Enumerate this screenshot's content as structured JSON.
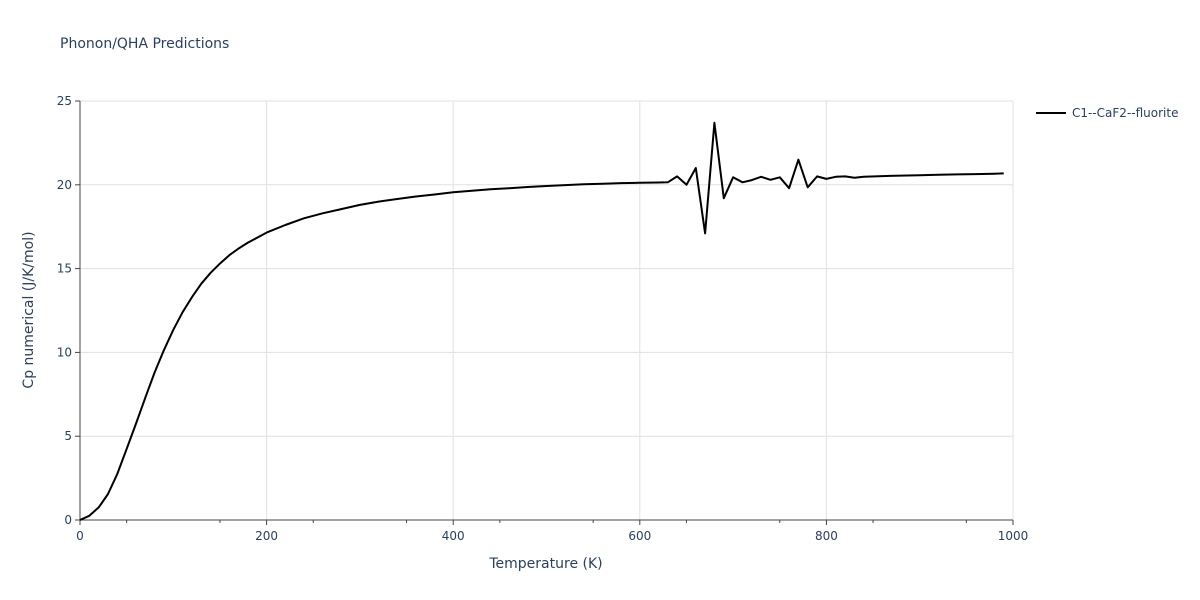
{
  "chart_data": {
    "type": "line",
    "title": "Phonon/QHA Predictions",
    "xlabel": "Temperature (K)",
    "ylabel": "Cp numerical (J/K/mol)",
    "xlim": [
      0,
      1000
    ],
    "ylim": [
      0,
      25
    ],
    "x_ticks": [
      0,
      200,
      400,
      600,
      800,
      1000
    ],
    "y_ticks": [
      0,
      5,
      10,
      15,
      20,
      25
    ],
    "grid": true,
    "legend_position": "top-right",
    "series": [
      {
        "name": "C1--CaF2--fluorite",
        "color": "#000000",
        "x": [
          0,
          10,
          20,
          30,
          40,
          50,
          60,
          70,
          80,
          90,
          100,
          110,
          120,
          130,
          140,
          150,
          160,
          170,
          180,
          190,
          200,
          220,
          240,
          260,
          280,
          300,
          320,
          340,
          360,
          380,
          400,
          420,
          440,
          460,
          480,
          500,
          520,
          540,
          560,
          580,
          600,
          620,
          630,
          640,
          650,
          660,
          670,
          680,
          690,
          700,
          710,
          720,
          730,
          740,
          750,
          760,
          770,
          780,
          790,
          800,
          810,
          820,
          830,
          840,
          860,
          880,
          900,
          920,
          940,
          960,
          980,
          990
        ],
        "y": [
          0,
          0.25,
          0.75,
          1.55,
          2.75,
          4.25,
          5.75,
          7.3,
          8.8,
          10.15,
          11.35,
          12.4,
          13.3,
          14.1,
          14.75,
          15.3,
          15.8,
          16.2,
          16.55,
          16.85,
          17.15,
          17.6,
          18.0,
          18.3,
          18.55,
          18.8,
          19.0,
          19.15,
          19.3,
          19.42,
          19.55,
          19.65,
          19.73,
          19.8,
          19.87,
          19.93,
          19.98,
          20.03,
          20.06,
          20.1,
          20.12,
          20.14,
          20.15,
          20.5,
          20.0,
          21.0,
          17.1,
          23.7,
          19.2,
          20.45,
          20.15,
          20.28,
          20.48,
          20.3,
          20.45,
          19.8,
          21.5,
          19.85,
          20.5,
          20.35,
          20.48,
          20.5,
          20.42,
          20.48,
          20.52,
          20.55,
          20.57,
          20.6,
          20.62,
          20.64,
          20.66,
          20.68
        ]
      }
    ]
  }
}
